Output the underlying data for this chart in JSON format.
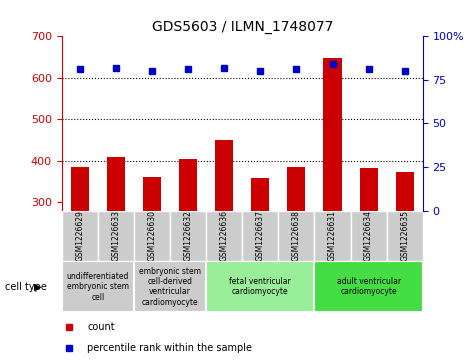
{
  "title": "GDS5603 / ILMN_1748077",
  "samples": [
    "GSM1226629",
    "GSM1226633",
    "GSM1226630",
    "GSM1226632",
    "GSM1226636",
    "GSM1226637",
    "GSM1226638",
    "GSM1226631",
    "GSM1226634",
    "GSM1226635"
  ],
  "counts": [
    385,
    410,
    360,
    405,
    450,
    358,
    385,
    648,
    382,
    372
  ],
  "percentiles": [
    81,
    82,
    80,
    81,
    82,
    80,
    81,
    84,
    81,
    80
  ],
  "ylim_left": [
    280,
    700
  ],
  "ylim_right": [
    0,
    100
  ],
  "yticks_left": [
    300,
    400,
    500,
    600,
    700
  ],
  "yticks_right": [
    0,
    25,
    50,
    75,
    100
  ],
  "yticks_right_labels": [
    "0",
    "25",
    "50",
    "75",
    "100%"
  ],
  "bar_color": "#cc0000",
  "dot_color": "#0000cc",
  "cell_groups": [
    {
      "label": "undifferentiated\nembryonic stem\ncell",
      "start": 0,
      "end": 2,
      "color": "#cccccc"
    },
    {
      "label": "embryonic stem\ncell-derived\nventricular\ncardiomyocyte",
      "start": 2,
      "end": 4,
      "color": "#cccccc"
    },
    {
      "label": "fetal ventricular\ncardiomyocyte",
      "start": 4,
      "end": 7,
      "color": "#99ee99"
    },
    {
      "label": "adult ventricular\ncardiomyocyte",
      "start": 7,
      "end": 10,
      "color": "#44dd44"
    }
  ],
  "legend_count_label": "count",
  "legend_percentile_label": "percentile rank within the sample",
  "cell_type_label": "cell type"
}
